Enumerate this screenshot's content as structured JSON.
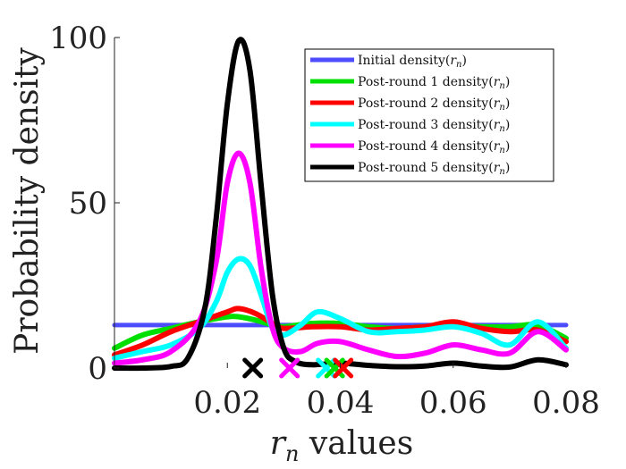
{
  "chart_data": {
    "type": "line",
    "ylabel": "Probability density",
    "xlabel_var": "r",
    "xlabel_sub": "n",
    "xlabel_rest": " values",
    "xlim": [
      0.0,
      0.08
    ],
    "ylim": [
      0,
      100
    ],
    "x_ticks": [
      {
        "value": 0.02,
        "label": "0.02"
      },
      {
        "value": 0.04,
        "label": "0.04"
      },
      {
        "value": 0.06,
        "label": "0.06"
      },
      {
        "value": 0.08,
        "label": "0.08"
      }
    ],
    "y_ticks": [
      {
        "value": 0,
        "label": "0"
      },
      {
        "value": 50,
        "label": "50"
      },
      {
        "value": 100,
        "label": "100"
      }
    ],
    "legend_position": "top-right",
    "series": [
      {
        "name": "Initial density",
        "color": "#4d4dff",
        "x": [
          0.0,
          0.08
        ],
        "y": [
          13.0,
          13.0
        ]
      },
      {
        "name": "Post-round 1 density",
        "color": "#00e000",
        "x": [
          0.0,
          0.005,
          0.01,
          0.015,
          0.02,
          0.022,
          0.025,
          0.028,
          0.03,
          0.035,
          0.04,
          0.045,
          0.05,
          0.055,
          0.06,
          0.065,
          0.07,
          0.075,
          0.08
        ],
        "y": [
          6,
          10,
          12,
          14,
          15.5,
          15.5,
          14.5,
          13,
          12.5,
          13.5,
          13.5,
          12.5,
          12,
          12.5,
          13,
          12.5,
          12.5,
          13,
          9
        ]
      },
      {
        "name": "Post-round 2 density",
        "color": "#ff0000",
        "x": [
          0.0,
          0.005,
          0.01,
          0.015,
          0.02,
          0.022,
          0.025,
          0.028,
          0.03,
          0.035,
          0.04,
          0.045,
          0.05,
          0.055,
          0.06,
          0.065,
          0.07,
          0.075,
          0.08
        ],
        "y": [
          4,
          7,
          11,
          14,
          17,
          18,
          16.5,
          13.5,
          12,
          12.5,
          12.5,
          11.5,
          12,
          12.5,
          14,
          12,
          11,
          11.5,
          8
        ]
      },
      {
        "name": "Post-round 3 density",
        "color": "#00ffff",
        "x": [
          0.0,
          0.005,
          0.01,
          0.015,
          0.018,
          0.02,
          0.022,
          0.024,
          0.026,
          0.028,
          0.03,
          0.033,
          0.036,
          0.04,
          0.045,
          0.05,
          0.055,
          0.06,
          0.065,
          0.07,
          0.075,
          0.08
        ],
        "y": [
          3,
          5,
          7,
          12,
          20,
          29,
          33,
          31,
          22,
          12,
          10,
          13,
          17,
          15,
          11,
          11,
          11.5,
          12.5,
          10.5,
          7,
          14,
          6
        ]
      },
      {
        "name": "Post-round 4 density",
        "color": "#ff00ff",
        "x": [
          0.0,
          0.005,
          0.01,
          0.015,
          0.018,
          0.02,
          0.022,
          0.024,
          0.026,
          0.028,
          0.03,
          0.033,
          0.036,
          0.04,
          0.045,
          0.05,
          0.055,
          0.06,
          0.065,
          0.07,
          0.075,
          0.08
        ],
        "y": [
          1.5,
          2.5,
          5,
          14,
          32,
          56,
          65,
          56,
          30,
          12,
          6,
          5,
          7.5,
          8,
          5.5,
          3.5,
          4.5,
          7,
          5.5,
          4.5,
          11,
          5.5
        ]
      },
      {
        "name": "Post-round 5 density",
        "color": "#000000",
        "x": [
          0.0,
          0.005,
          0.01,
          0.013,
          0.016,
          0.018,
          0.02,
          0.022,
          0.024,
          0.026,
          0.028,
          0.03,
          0.032,
          0.035,
          0.04,
          0.045,
          0.05,
          0.055,
          0.06,
          0.065,
          0.07,
          0.075,
          0.08
        ],
        "y": [
          0,
          0,
          0.5,
          3,
          18,
          45,
          80,
          99,
          90,
          55,
          22,
          6,
          2,
          1,
          1.5,
          0.8,
          0.4,
          0.6,
          1.5,
          0.6,
          0.3,
          2.5,
          1
        ]
      }
    ],
    "markers": [
      {
        "x": 0.0245,
        "y": 0,
        "color": "#000000"
      },
      {
        "x": 0.031,
        "y": 0,
        "color": "#ff00ff"
      },
      {
        "x": 0.0375,
        "y": 0,
        "color": "#00ffff"
      },
      {
        "x": 0.039,
        "y": 0,
        "color": "#00e000"
      },
      {
        "x": 0.0405,
        "y": 0,
        "color": "#ff0000"
      }
    ]
  }
}
